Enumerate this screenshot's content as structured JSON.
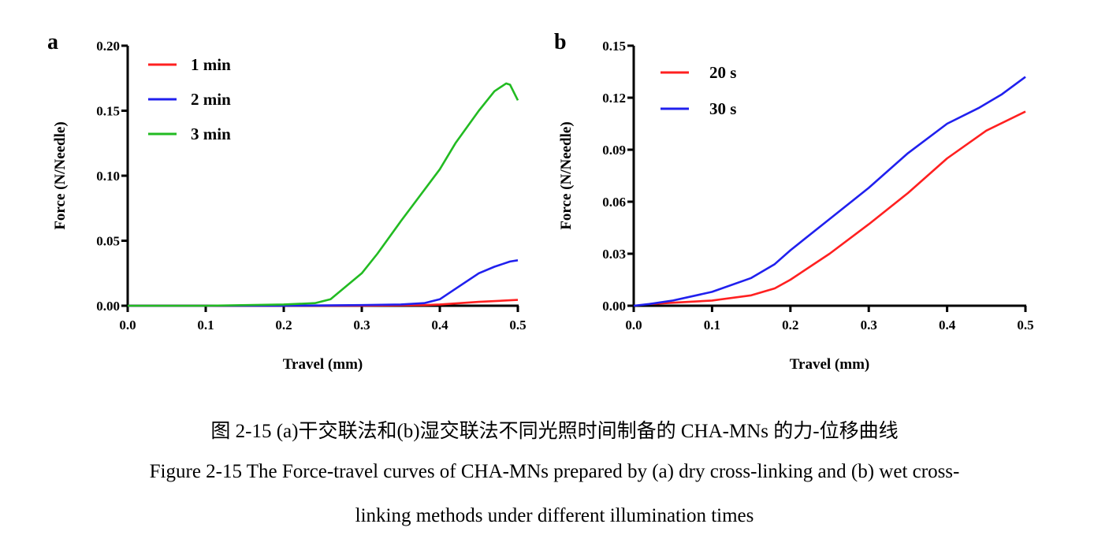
{
  "chart_data": [
    {
      "type": "line",
      "panel_label": "a",
      "xlabel": "Travel (mm)",
      "ylabel": "Force (N/Needle)",
      "xlim": [
        0,
        0.5
      ],
      "ylim": [
        0,
        0.2
      ],
      "xticks": [
        "0.0",
        "0.1",
        "0.2",
        "0.3",
        "0.4",
        "0.5"
      ],
      "yticks": [
        "0.00",
        "0.05",
        "0.10",
        "0.15",
        "0.20"
      ],
      "grid": false,
      "legend_position": "top-left",
      "series": [
        {
          "name": "1 min",
          "color": "#ff2020",
          "x": [
            0,
            0.1,
            0.2,
            0.3,
            0.38,
            0.4,
            0.45,
            0.5
          ],
          "y": [
            0,
            0,
            0,
            0,
            0.0005,
            0.001,
            0.003,
            0.0045
          ]
        },
        {
          "name": "2 min",
          "color": "#2020ee",
          "x": [
            0,
            0.1,
            0.2,
            0.3,
            0.35,
            0.38,
            0.4,
            0.42,
            0.45,
            0.47,
            0.49,
            0.5
          ],
          "y": [
            0,
            0,
            0,
            0.0005,
            0.001,
            0.002,
            0.005,
            0.013,
            0.025,
            0.03,
            0.034,
            0.035
          ]
        },
        {
          "name": "3 min",
          "color": "#22bb22",
          "x": [
            0,
            0.1,
            0.2,
            0.24,
            0.26,
            0.28,
            0.3,
            0.32,
            0.35,
            0.4,
            0.42,
            0.45,
            0.47,
            0.485,
            0.49,
            0.5
          ],
          "y": [
            0,
            0,
            0.001,
            0.002,
            0.005,
            0.015,
            0.025,
            0.04,
            0.065,
            0.105,
            0.125,
            0.15,
            0.165,
            0.171,
            0.17,
            0.158
          ]
        }
      ]
    },
    {
      "type": "line",
      "panel_label": "b",
      "xlabel": "Travel (mm)",
      "ylabel": "Force (N/Needle)",
      "xlim": [
        0,
        0.5
      ],
      "ylim": [
        0,
        0.15
      ],
      "xticks": [
        "0.0",
        "0.1",
        "0.2",
        "0.3",
        "0.4",
        "0.5"
      ],
      "yticks": [
        "0.00",
        "0.03",
        "0.06",
        "0.09",
        "0.12",
        "0.15"
      ],
      "grid": false,
      "legend_position": "top-left",
      "series": [
        {
          "name": "20 s",
          "color": "#ff2020",
          "x": [
            0.02,
            0.1,
            0.15,
            0.18,
            0.2,
            0.25,
            0.3,
            0.35,
            0.4,
            0.45,
            0.5
          ],
          "y": [
            0.001,
            0.003,
            0.006,
            0.01,
            0.015,
            0.03,
            0.047,
            0.065,
            0.085,
            0.101,
            0.112
          ]
        },
        {
          "name": "30 s",
          "color": "#2020ee",
          "x": [
            0,
            0.02,
            0.05,
            0.1,
            0.15,
            0.18,
            0.2,
            0.25,
            0.3,
            0.35,
            0.4,
            0.44,
            0.47,
            0.5
          ],
          "y": [
            0,
            0.001,
            0.003,
            0.008,
            0.016,
            0.024,
            0.032,
            0.05,
            0.068,
            0.088,
            0.105,
            0.114,
            0.122,
            0.132
          ]
        }
      ]
    }
  ],
  "caption": {
    "zh": "图 2-15 (a)干交联法和(b)湿交联法不同光照时间制备的 CHA-MNs 的力-位移曲线",
    "en_line1": "Figure 2-15 The Force-travel curves of CHA-MNs prepared by (a) dry cross-linking and (b) wet cross-",
    "en_line2": "linking methods under different illumination times"
  }
}
